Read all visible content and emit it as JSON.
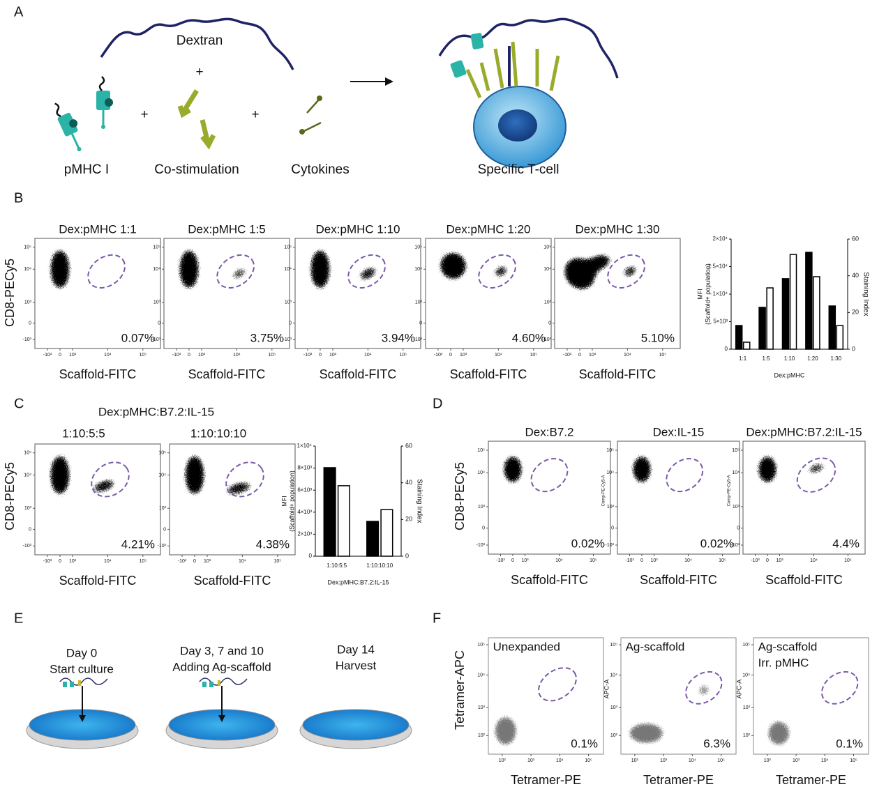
{
  "panel_labels": [
    "A",
    "B",
    "C",
    "D",
    "E",
    "F"
  ],
  "panel_a": {
    "dextran": "Dextran",
    "plus": "+",
    "labels": [
      "pMHC I",
      "Co-stimulation",
      "Cytokines",
      "Specific T-cell"
    ]
  },
  "panel_b": {
    "y_label": "CD8-PECy5",
    "x_label": "Scaffold-FITC",
    "yticks": [
      "10⁵",
      "10⁴",
      "10³",
      "0",
      "-10³"
    ],
    "xticks": [
      "-10³",
      "0",
      "10³",
      "10⁴",
      "10⁵"
    ],
    "plots": [
      {
        "title": "Dex:pMHC 1:1",
        "percent": "0.07%"
      },
      {
        "title": "Dex:pMHC 1:5",
        "percent": "3.75%"
      },
      {
        "title": "Dex:pMHC 1:10",
        "percent": "3.94%"
      },
      {
        "title": "Dex:pMHC 1:20",
        "percent": "4.60%"
      },
      {
        "title": "Dex:pMHC 1:30",
        "percent": "5.10%"
      }
    ]
  },
  "panel_c": {
    "title": "Dex:pMHC:B7.2:IL-15",
    "y_label": "CD8-PECy5",
    "x_label": "Scaffold-FITC",
    "yticks": [
      "10⁵",
      "10⁴",
      "10³",
      "0",
      "-10³"
    ],
    "xticks": [
      "-10³",
      "0",
      "10³",
      "10⁴",
      "10⁵"
    ],
    "plots": [
      {
        "title": "1:10:5:5",
        "percent": "4.21%"
      },
      {
        "title": "1:10:10:10",
        "percent": "4.38%"
      }
    ]
  },
  "panel_d": {
    "y_label": "CD8-PECy5",
    "x_label": "Scaffold-FITC",
    "inner_label": "Comp-PE-Cy5-A",
    "yticks": [
      "10⁵",
      "10⁴",
      "10³",
      "0",
      "-10³"
    ],
    "xticks": [
      "-10³",
      "0",
      "10³",
      "10⁴",
      "10⁵"
    ],
    "plots": [
      {
        "title": "Dex:B7.2",
        "percent": "0.02%"
      },
      {
        "title": "Dex:IL-15",
        "percent": "0.02%"
      },
      {
        "title": "Dex:pMHC:B7.2:IL-15",
        "percent": "4.4%"
      }
    ]
  },
  "panel_e": {
    "steps": [
      [
        "Day 0",
        "Start culture"
      ],
      [
        "Day 3, 7 and 10",
        "Adding Ag-scaffold"
      ],
      [
        "Day 14",
        "Harvest"
      ]
    ]
  },
  "panel_f": {
    "y_label": "Tetramer-APC",
    "x_label": "Tetramer-PE",
    "inner_label": "APC-A",
    "yticks": [
      "10⁵",
      "10⁴",
      "10³",
      "10²"
    ],
    "xticks": [
      "10²",
      "10³",
      "10⁴",
      "10⁵"
    ],
    "plots": [
      {
        "title": [
          "Unexpanded"
        ],
        "percent": "0.1%"
      },
      {
        "title": [
          "Ag-scaffold"
        ],
        "percent": "6.3%"
      },
      {
        "title": [
          "Ag-scaffold",
          "Irr. pMHC"
        ],
        "percent": "0.1%"
      }
    ]
  },
  "chart_data": [
    {
      "type": "bar",
      "categories": [
        "1:1",
        "1:5",
        "1:10",
        "1:20",
        "1:30"
      ],
      "series": [
        {
          "name": "MFI",
          "color": "#000000",
          "values": [
            4300,
            7600,
            12800,
            17600,
            7850
          ]
        },
        {
          "name": "Staining Index",
          "color": "#ffffff",
          "axis": "y2",
          "values": [
            3.8,
            33.4,
            51.6,
            39.5,
            12.9
          ]
        }
      ],
      "ylabel_sub": "(Scaffold+ population)",
      "xlabel": "Dex:pMHC",
      "ylim": [
        0,
        20000
      ],
      "yticks": [
        0,
        {
          "value": 5000,
          "label": "5×10³"
        },
        {
          "value": 10000,
          "label": "1×10⁴"
        },
        {
          "value": 15000,
          "label": "1.5×10⁴"
        },
        {
          "value": 20000,
          "label": "2×10⁴"
        }
      ],
      "y2lim": [
        0,
        60
      ],
      "y2ticks": [
        0,
        20,
        40,
        60
      ]
    },
    {
      "type": "bar",
      "categories": [
        "1:10:5:5",
        "1:10:10:10"
      ],
      "series": [
        {
          "name": "MFI",
          "color": "#000000",
          "values": [
            8040,
            3160
          ]
        },
        {
          "name": "Staining Index",
          "color": "#ffffff",
          "axis": "y2",
          "values": [
            38.4,
            25.4
          ]
        }
      ],
      "ylabel_sub": "(Scaffold+ population)",
      "xlabel": "Dex:pMHC:B7.2:IL-15",
      "ylim": [
        0,
        10000
      ],
      "yticks": [
        0,
        {
          "value": 2000,
          "label": "2×10³"
        },
        {
          "value": 4000,
          "label": "4×10³"
        },
        {
          "value": 6000,
          "label": "6×10³"
        },
        {
          "value": 8000,
          "label": "8×10³"
        },
        {
          "value": 10000,
          "label": "1×10⁴"
        }
      ],
      "y2lim": [
        0,
        60
      ],
      "y2ticks": [
        0,
        20,
        40,
        60
      ]
    }
  ]
}
